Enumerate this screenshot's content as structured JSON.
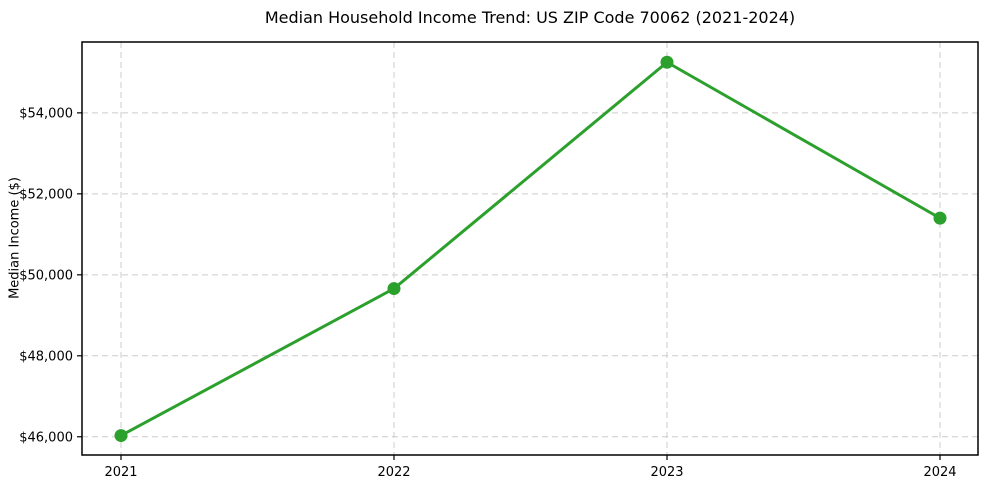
{
  "chart_data": {
    "type": "line",
    "title": "Median Household Income Trend: US ZIP Code 70062 (2021-2024)",
    "xlabel": "",
    "ylabel": "Median Income ($)",
    "categories": [
      "2021",
      "2022",
      "2023",
      "2024"
    ],
    "series": [
      {
        "name": "Median household income",
        "values": [
          46030,
          49660,
          55250,
          51400
        ],
        "color": "#2ca02c",
        "marker": "circle"
      }
    ],
    "ylim": [
      45550,
      55750
    ],
    "yticks": [
      46000,
      48000,
      50000,
      52000,
      54000
    ],
    "ytick_labels": [
      "$46,000",
      "$48,000",
      "$50,000",
      "$52,000",
      "$54,000"
    ],
    "grid": "dashed",
    "grid_color": "#cccccc",
    "spine_color": "#000000",
    "legend_position": "none",
    "background": "#ffffff"
  }
}
